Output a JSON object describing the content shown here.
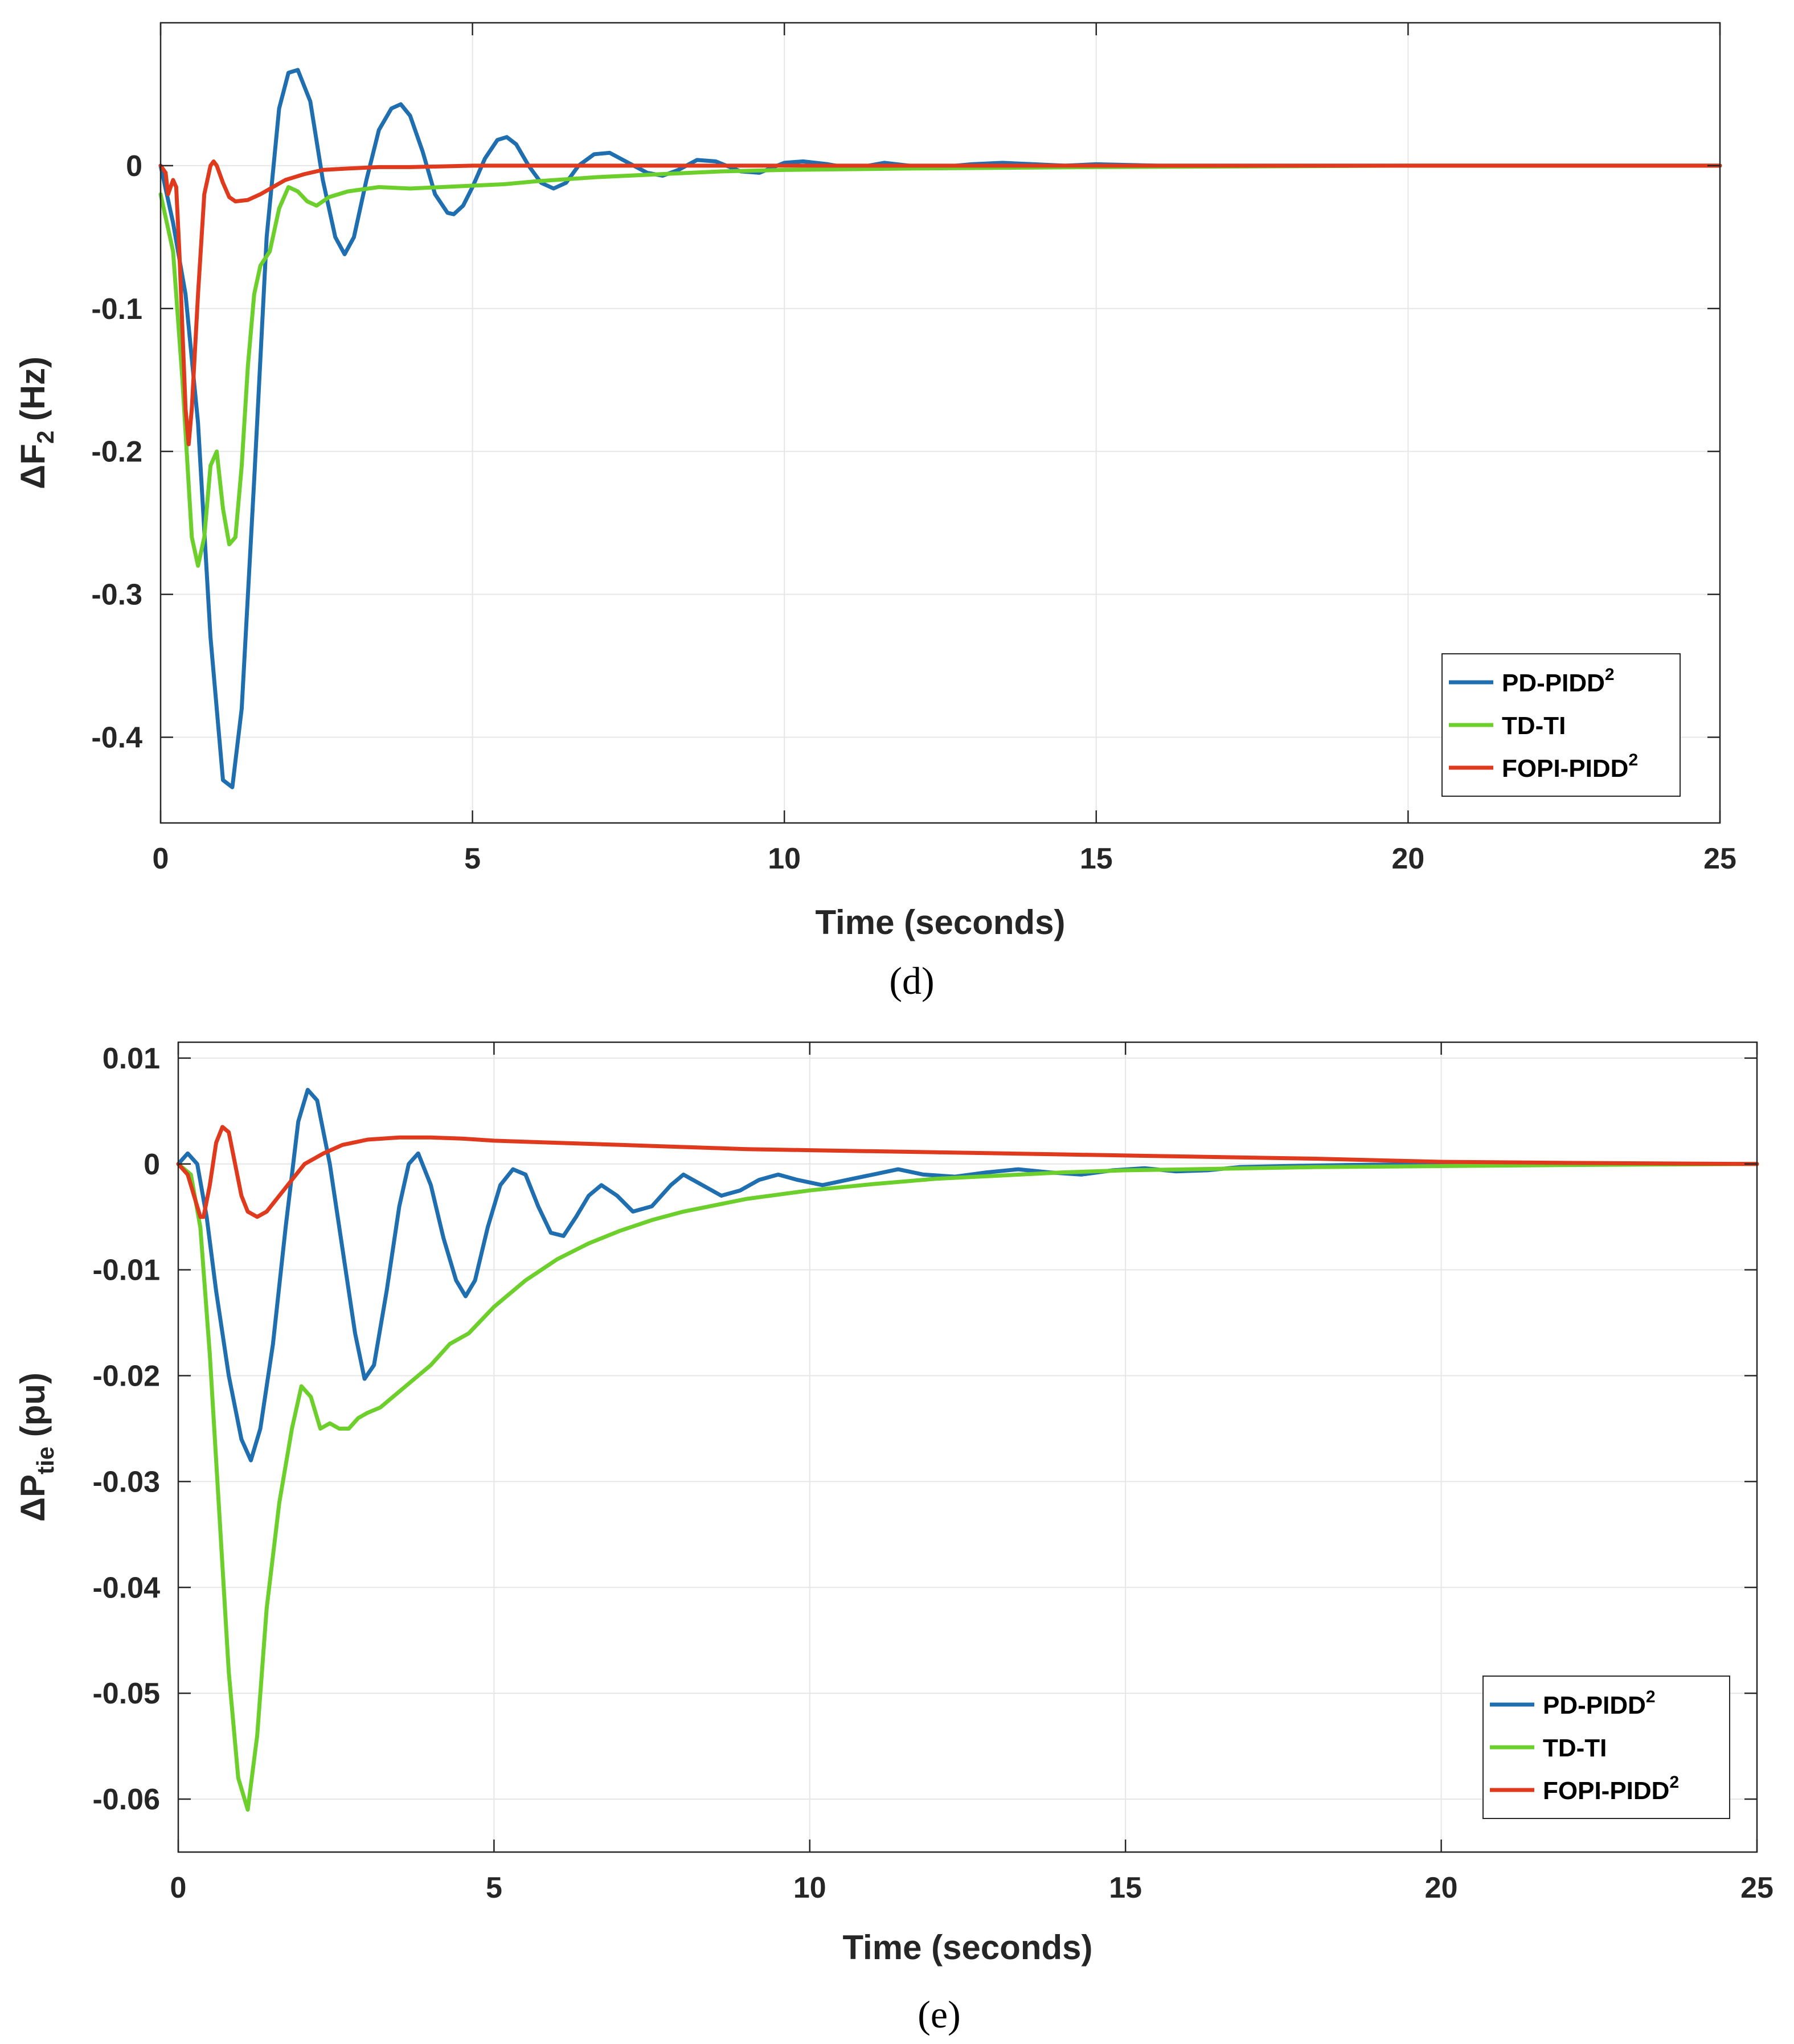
{
  "colors": {
    "pd_pidd2": "#1f6fb0",
    "td_ti": "#6ccf2b",
    "fopi_pidd2": "#e03a1e"
  },
  "chart_data": [
    {
      "type": "line",
      "caption": "(d)",
      "xlabel": "Time (seconds)",
      "ylabel_main": "ΔF",
      "ylabel_sub": "2",
      "ylabel_tail": " (Hz)",
      "xlim": [
        0,
        25
      ],
      "ylim": [
        -0.46,
        0.1
      ],
      "xticks": [
        0,
        5,
        10,
        15,
        20,
        25
      ],
      "yticks": [
        0,
        -0.1,
        -0.2,
        -0.3,
        -0.4
      ],
      "ytick_labels": [
        "0",
        "-0.1",
        "-0.2",
        "-0.3",
        "-0.4"
      ],
      "grid": true,
      "legend_position": "bottom-right",
      "series": [
        {
          "name": "PD-PIDD",
          "sup": "2",
          "color_key": "pd_pidd2",
          "x": [
            0,
            0.2,
            0.4,
            0.6,
            0.8,
            1.0,
            1.15,
            1.3,
            1.5,
            1.7,
            1.9,
            2.05,
            2.2,
            2.4,
            2.6,
            2.8,
            2.95,
            3.1,
            3.3,
            3.5,
            3.7,
            3.85,
            4.0,
            4.2,
            4.4,
            4.6,
            4.7,
            4.85,
            5.0,
            5.2,
            5.4,
            5.55,
            5.7,
            5.9,
            6.1,
            6.3,
            6.5,
            6.7,
            6.95,
            7.2,
            7.5,
            7.8,
            8.05,
            8.3,
            8.6,
            8.9,
            9.3,
            9.6,
            10.0,
            10.3,
            10.7,
            11.1,
            11.6,
            12.0,
            12.5,
            13.0,
            13.5,
            14.0,
            14.5,
            15.0,
            16.0,
            17.0,
            18.0,
            20.0,
            22.0,
            25.0
          ],
          "y": [
            0,
            -0.04,
            -0.09,
            -0.18,
            -0.33,
            -0.43,
            -0.435,
            -0.38,
            -0.22,
            -0.05,
            0.04,
            0.065,
            0.067,
            0.045,
            -0.01,
            -0.05,
            -0.062,
            -0.05,
            -0.01,
            0.025,
            0.04,
            0.043,
            0.035,
            0.01,
            -0.02,
            -0.033,
            -0.034,
            -0.028,
            -0.015,
            0.005,
            0.018,
            0.02,
            0.015,
            0.0,
            -0.012,
            -0.016,
            -0.012,
            0.0,
            0.008,
            0.009,
            0.002,
            -0.005,
            -0.007,
            -0.003,
            0.004,
            0.003,
            -0.004,
            -0.005,
            0.002,
            0.003,
            0.001,
            -0.002,
            0.002,
            0.0,
            -0.001,
            0.001,
            0.002,
            0.001,
            0.0,
            0.001,
            0.0,
            0.0,
            0.0,
            0.0,
            0.0,
            0.0
          ]
        },
        {
          "name": "TD-TI",
          "sup": "",
          "color_key": "td_ti",
          "x": [
            0,
            0.2,
            0.35,
            0.5,
            0.6,
            0.7,
            0.8,
            0.9,
            1.0,
            1.1,
            1.2,
            1.3,
            1.4,
            1.5,
            1.6,
            1.75,
            1.9,
            2.05,
            2.2,
            2.35,
            2.5,
            2.7,
            3.0,
            3.5,
            4.0,
            4.5,
            5.0,
            5.5,
            6.0,
            7.0,
            8.0,
            9.0,
            10.0,
            12.0,
            15.0,
            20.0,
            25.0
          ],
          "y": [
            -0.02,
            -0.06,
            -0.15,
            -0.26,
            -0.28,
            -0.26,
            -0.21,
            -0.2,
            -0.24,
            -0.265,
            -0.26,
            -0.21,
            -0.14,
            -0.09,
            -0.07,
            -0.06,
            -0.03,
            -0.015,
            -0.018,
            -0.025,
            -0.028,
            -0.022,
            -0.018,
            -0.015,
            -0.016,
            -0.015,
            -0.014,
            -0.013,
            -0.011,
            -0.008,
            -0.006,
            -0.004,
            -0.003,
            -0.002,
            -0.001,
            0.0,
            0.0
          ]
        },
        {
          "name": "FOPI-PIDD",
          "sup": "2",
          "color_key": "fopi_pidd2",
          "x": [
            0,
            0.08,
            0.12,
            0.2,
            0.25,
            0.3,
            0.4,
            0.45,
            0.5,
            0.6,
            0.7,
            0.8,
            0.85,
            0.9,
            1.0,
            1.1,
            1.2,
            1.4,
            1.6,
            1.8,
            2.0,
            2.3,
            2.6,
            3.0,
            3.5,
            4.0,
            5.0,
            6.0,
            8.0,
            10.0,
            15.0,
            20.0,
            25.0
          ],
          "y": [
            0,
            -0.005,
            -0.02,
            -0.01,
            -0.015,
            -0.06,
            -0.17,
            -0.195,
            -0.17,
            -0.09,
            -0.02,
            0.0,
            0.003,
            0.0,
            -0.012,
            -0.022,
            -0.025,
            -0.024,
            -0.02,
            -0.015,
            -0.01,
            -0.006,
            -0.003,
            -0.002,
            -0.001,
            -0.001,
            0.0,
            0.0,
            0.0,
            0.0,
            0.0,
            0.0,
            0.0
          ]
        }
      ]
    },
    {
      "type": "line",
      "caption": "(e)",
      "xlabel": "Time (seconds)",
      "ylabel_main": "ΔP",
      "ylabel_sub": "tie",
      "ylabel_tail": " (pu)",
      "xlim": [
        0,
        25
      ],
      "ylim": [
        -0.065,
        0.0115
      ],
      "xticks": [
        0,
        5,
        10,
        15,
        20,
        25
      ],
      "yticks": [
        0.01,
        0,
        -0.01,
        -0.02,
        -0.03,
        -0.04,
        -0.05,
        -0.06
      ],
      "ytick_labels": [
        "0.01",
        "0",
        "-0.01",
        "-0.02",
        "-0.03",
        "-0.04",
        "-0.05",
        "-0.06"
      ],
      "grid": true,
      "legend_position": "bottom-right",
      "series": [
        {
          "name": "PD-PIDD",
          "sup": "2",
          "color_key": "pd_pidd2",
          "x": [
            0,
            0.15,
            0.3,
            0.45,
            0.6,
            0.8,
            1.0,
            1.15,
            1.3,
            1.5,
            1.7,
            1.9,
            2.05,
            2.2,
            2.4,
            2.6,
            2.8,
            2.95,
            3.1,
            3.3,
            3.5,
            3.65,
            3.8,
            4.0,
            4.2,
            4.4,
            4.55,
            4.7,
            4.9,
            5.1,
            5.3,
            5.5,
            5.7,
            5.9,
            6.1,
            6.3,
            6.5,
            6.7,
            6.95,
            7.2,
            7.5,
            7.8,
            8.0,
            8.3,
            8.6,
            8.9,
            9.2,
            9.5,
            9.8,
            10.2,
            10.6,
            11.0,
            11.4,
            11.8,
            12.3,
            12.8,
            13.3,
            13.8,
            14.3,
            14.8,
            15.3,
            15.8,
            16.3,
            16.8,
            17.5,
            18.5,
            20.0,
            22.0,
            25.0
          ],
          "y": [
            0,
            0.001,
            0.0,
            -0.005,
            -0.012,
            -0.02,
            -0.026,
            -0.028,
            -0.025,
            -0.017,
            -0.006,
            0.004,
            0.007,
            0.006,
            0.0,
            -0.008,
            -0.016,
            -0.0203,
            -0.019,
            -0.012,
            -0.004,
            0.0,
            0.001,
            -0.002,
            -0.007,
            -0.011,
            -0.0125,
            -0.011,
            -0.006,
            -0.002,
            -0.0005,
            -0.001,
            -0.004,
            -0.0065,
            -0.0068,
            -0.005,
            -0.003,
            -0.002,
            -0.003,
            -0.0045,
            -0.004,
            -0.002,
            -0.001,
            -0.002,
            -0.003,
            -0.0025,
            -0.0015,
            -0.001,
            -0.0015,
            -0.002,
            -0.0015,
            -0.001,
            -0.0005,
            -0.001,
            -0.0012,
            -0.0008,
            -0.0005,
            -0.0008,
            -0.001,
            -0.0006,
            -0.0004,
            -0.0007,
            -0.0006,
            -0.0003,
            -0.0002,
            -0.0001,
            0.0,
            0.0,
            0.0
          ]
        },
        {
          "name": "TD-TI",
          "sup": "",
          "color_key": "td_ti",
          "x": [
            0,
            0.2,
            0.35,
            0.5,
            0.65,
            0.8,
            0.95,
            1.1,
            1.25,
            1.4,
            1.6,
            1.8,
            1.95,
            2.1,
            2.25,
            2.4,
            2.55,
            2.7,
            2.85,
            3.0,
            3.2,
            3.4,
            3.6,
            3.8,
            4.0,
            4.3,
            4.6,
            5.0,
            5.5,
            6.0,
            6.5,
            7.0,
            7.5,
            8.0,
            9.0,
            10.0,
            11.0,
            12.0,
            13.0,
            14.0,
            15.0,
            16.0,
            18.0,
            20.0,
            22.0,
            25.0
          ],
          "y": [
            0,
            -0.001,
            -0.006,
            -0.018,
            -0.033,
            -0.048,
            -0.058,
            -0.061,
            -0.054,
            -0.042,
            -0.032,
            -0.025,
            -0.021,
            -0.022,
            -0.025,
            -0.0245,
            -0.025,
            -0.025,
            -0.024,
            -0.0235,
            -0.023,
            -0.022,
            -0.021,
            -0.02,
            -0.019,
            -0.017,
            -0.016,
            -0.0135,
            -0.011,
            -0.009,
            -0.0075,
            -0.0063,
            -0.0053,
            -0.0045,
            -0.0033,
            -0.0025,
            -0.0019,
            -0.0014,
            -0.0011,
            -0.0008,
            -0.0006,
            -0.0005,
            -0.0003,
            -0.0002,
            -0.0001,
            0.0
          ]
        },
        {
          "name": "FOPI-PIDD",
          "sup": "2",
          "color_key": "fopi_pidd2",
          "x": [
            0,
            0.15,
            0.25,
            0.35,
            0.4,
            0.5,
            0.6,
            0.7,
            0.8,
            0.9,
            1.0,
            1.1,
            1.25,
            1.4,
            1.6,
            1.8,
            2.0,
            2.3,
            2.6,
            3.0,
            3.5,
            4.0,
            4.5,
            5.0,
            6.0,
            7.0,
            8.0,
            9.0,
            10.0,
            12.0,
            14.0,
            16.0,
            18.0,
            20.0,
            22.0,
            25.0
          ],
          "y": [
            0,
            -0.001,
            -0.003,
            -0.005,
            -0.005,
            -0.002,
            0.002,
            0.0035,
            0.003,
            0.0,
            -0.003,
            -0.0045,
            -0.005,
            -0.0045,
            -0.003,
            -0.0015,
            0.0,
            0.001,
            0.0018,
            0.0023,
            0.0025,
            0.0025,
            0.0024,
            0.0022,
            0.002,
            0.0018,
            0.0016,
            0.0014,
            0.0013,
            0.0011,
            0.0009,
            0.0007,
            0.0005,
            0.0002,
            0.0001,
            0.0
          ]
        }
      ]
    }
  ]
}
